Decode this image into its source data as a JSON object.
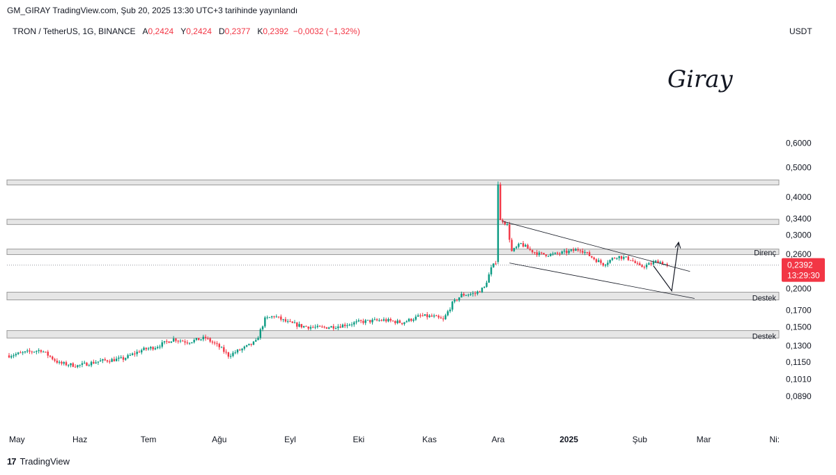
{
  "header": {
    "publish_line": "GM_GIRAY TradingView.com, Şub 20, 2025 13:30 UTC+3 tarihinde yayınlandı"
  },
  "symbol": {
    "name": "TRON / TetherUS, 1G, BINANCE",
    "o_label": "A",
    "o_value": "0,2424",
    "h_label": "Y",
    "h_value": "0,2424",
    "l_label": "D",
    "l_value": "0,2377",
    "c_label": "K",
    "c_value": "0,2392",
    "change": "−0,0032 (−1,32%)"
  },
  "currency": "USDT",
  "signature": "Giray",
  "footer": {
    "brand": "TradingView",
    "logo": "17"
  },
  "colors": {
    "up": "#089981",
    "down": "#f23645",
    "zone": "#e6e6e6",
    "zone_border": "#9a9a9a",
    "price_tag": "#f23645"
  },
  "chart_data": {
    "type": "candlestick",
    "title": "",
    "y_scale": "log",
    "ylim": [
      0.075,
      0.66
    ],
    "y_ticks": [
      {
        "value": 0.6,
        "label": "0,6000"
      },
      {
        "value": 0.5,
        "label": "0,5000"
      },
      {
        "value": 0.4,
        "label": "0,4000"
      },
      {
        "value": 0.34,
        "label": "0,3400"
      },
      {
        "value": 0.3,
        "label": "0,3000"
      },
      {
        "value": 0.26,
        "label": "0,2600"
      },
      {
        "value": 0.2,
        "label": "0,2000"
      },
      {
        "value": 0.17,
        "label": "0,1700"
      },
      {
        "value": 0.15,
        "label": "0,1500"
      },
      {
        "value": 0.13,
        "label": "0,1300"
      },
      {
        "value": 0.115,
        "label": "0,1150"
      },
      {
        "value": 0.101,
        "label": "0,1010"
      },
      {
        "value": 0.089,
        "label": "0,0890"
      }
    ],
    "x_ticks": [
      {
        "label": "May",
        "day": 0,
        "bold": false
      },
      {
        "label": "Haz",
        "day": 31,
        "bold": false
      },
      {
        "label": "Tem",
        "day": 61,
        "bold": false
      },
      {
        "label": "Ağu",
        "day": 92,
        "bold": false
      },
      {
        "label": "Eyl",
        "day": 123,
        "bold": false
      },
      {
        "label": "Eki",
        "day": 153,
        "bold": false
      },
      {
        "label": "Kas",
        "day": 184,
        "bold": false
      },
      {
        "label": "Ara",
        "day": 214,
        "bold": false
      },
      {
        "label": "2025",
        "day": 245,
        "bold": true
      },
      {
        "label": "Şub",
        "day": 276,
        "bold": false
      },
      {
        "label": "Mar",
        "day": 304,
        "bold": false
      },
      {
        "label": "Ni:",
        "day": 335,
        "bold": false
      }
    ],
    "last_price": {
      "value": 0.2392,
      "label": "0,2392",
      "countdown": "13:29:30"
    },
    "zones": [
      {
        "low": 0.438,
        "high": 0.455,
        "label": ""
      },
      {
        "low": 0.325,
        "high": 0.338,
        "label": ""
      },
      {
        "low": 0.259,
        "high": 0.27,
        "label": "Direnç"
      },
      {
        "low": 0.184,
        "high": 0.195,
        "label": "Destek"
      },
      {
        "low": 0.138,
        "high": 0.146,
        "label": "Destek"
      }
    ],
    "trendlines": [
      {
        "d1": 216,
        "p1": 0.333,
        "d2": 298,
        "p2": 0.228
      },
      {
        "d1": 219,
        "p1": 0.243,
        "d2": 300,
        "p2": 0.186
      }
    ],
    "projection": [
      {
        "d": 282,
        "p": 0.238
      },
      {
        "d": 290,
        "p": 0.197
      },
      {
        "d": 293,
        "p": 0.284
      }
    ],
    "anchors": [
      [
        0,
        0.121
      ],
      [
        8,
        0.124
      ],
      [
        14,
        0.126
      ],
      [
        22,
        0.114
      ],
      [
        30,
        0.112
      ],
      [
        40,
        0.116
      ],
      [
        50,
        0.118
      ],
      [
        58,
        0.126
      ],
      [
        64,
        0.129
      ],
      [
        72,
        0.137
      ],
      [
        78,
        0.134
      ],
      [
        86,
        0.138
      ],
      [
        92,
        0.129
      ],
      [
        96,
        0.121
      ],
      [
        102,
        0.127
      ],
      [
        108,
        0.134
      ],
      [
        112,
        0.159
      ],
      [
        116,
        0.163
      ],
      [
        122,
        0.155
      ],
      [
        128,
        0.151
      ],
      [
        136,
        0.149
      ],
      [
        144,
        0.151
      ],
      [
        154,
        0.156
      ],
      [
        164,
        0.158
      ],
      [
        172,
        0.155
      ],
      [
        180,
        0.163
      ],
      [
        186,
        0.162
      ],
      [
        190,
        0.158
      ],
      [
        194,
        0.179
      ],
      [
        198,
        0.191
      ],
      [
        204,
        0.193
      ],
      [
        208,
        0.202
      ],
      [
        211,
        0.233
      ],
      [
        213,
        0.245
      ],
      [
        214,
        0.44
      ],
      [
        216,
        0.336
      ],
      [
        218,
        0.323
      ],
      [
        220,
        0.265
      ],
      [
        224,
        0.281
      ],
      [
        228,
        0.268
      ],
      [
        232,
        0.26
      ],
      [
        238,
        0.259
      ],
      [
        244,
        0.264
      ],
      [
        250,
        0.27
      ],
      [
        256,
        0.251
      ],
      [
        260,
        0.241
      ],
      [
        266,
        0.256
      ],
      [
        272,
        0.25
      ],
      [
        276,
        0.236
      ],
      [
        280,
        0.24
      ],
      [
        284,
        0.247
      ],
      [
        288,
        0.239
      ]
    ]
  }
}
